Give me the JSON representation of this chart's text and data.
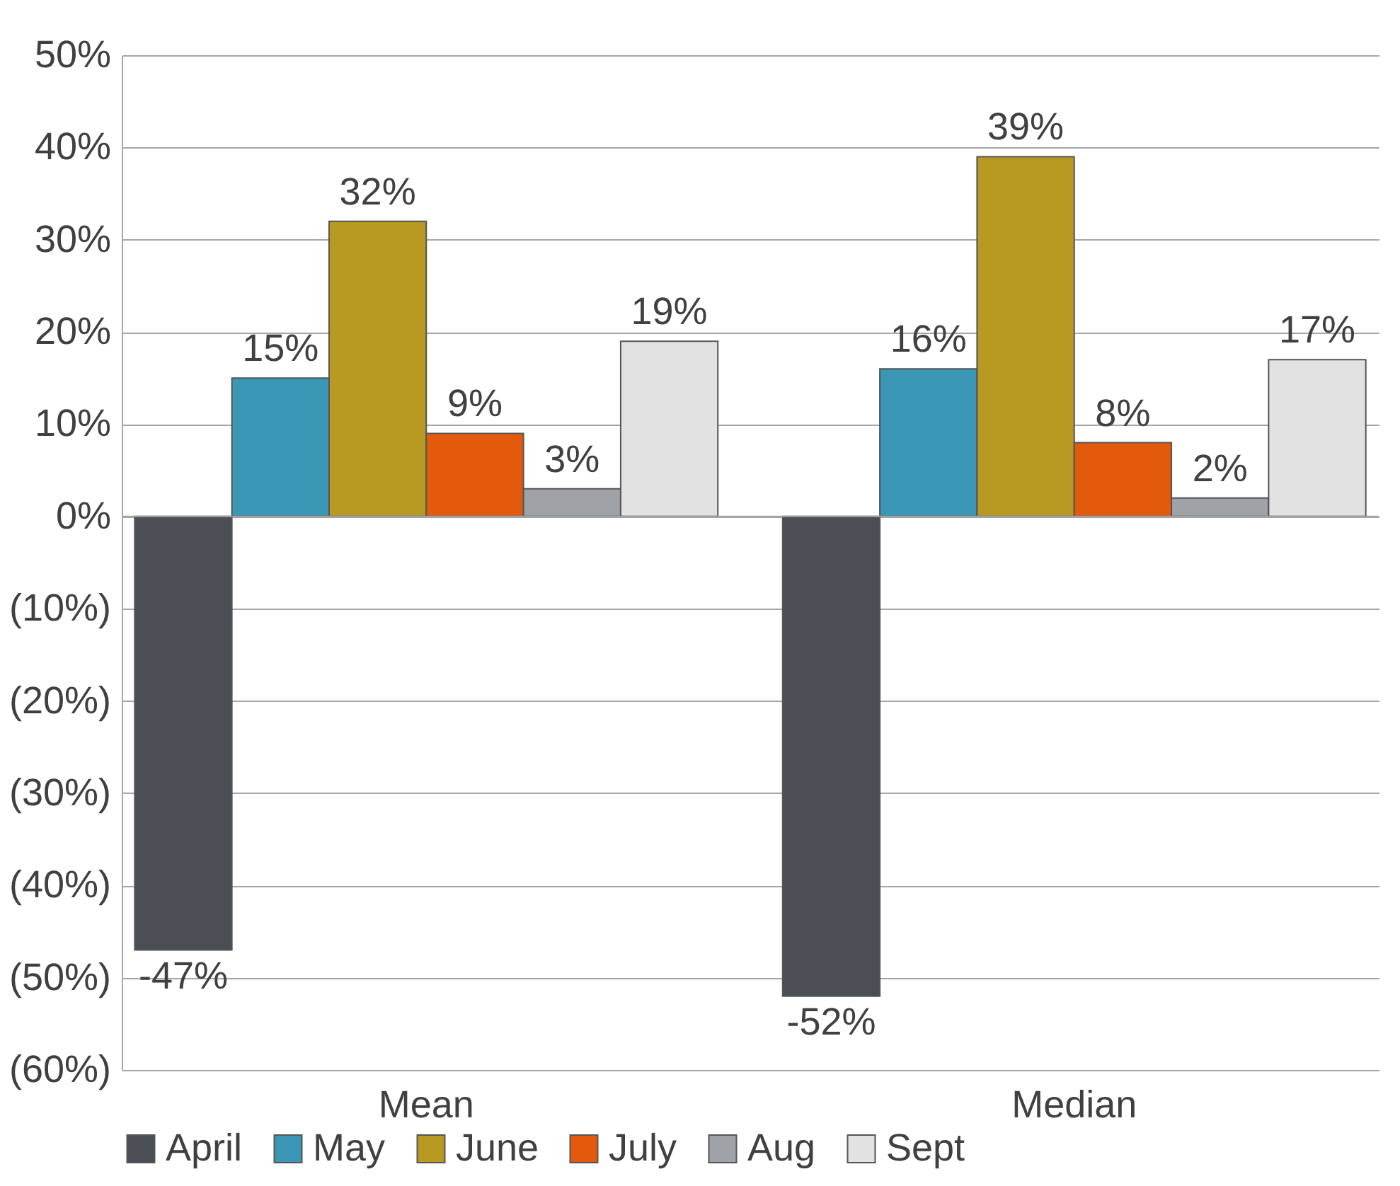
{
  "chart_data": {
    "type": "bar",
    "categories": [
      "Mean",
      "Median"
    ],
    "series": [
      {
        "name": "April",
        "color": "#4a4f55",
        "values": [
          -47,
          -52
        ],
        "value_labels": [
          "-47%",
          "-52%"
        ]
      },
      {
        "name": "May",
        "color": "#3a97b5",
        "values": [
          15,
          16
        ],
        "value_labels": [
          "15%",
          "16%"
        ]
      },
      {
        "name": "June",
        "color": "#b89a22",
        "values": [
          32,
          39
        ],
        "value_labels": [
          "32%",
          "39%"
        ]
      },
      {
        "name": "July",
        "color": "#e35a0d",
        "values": [
          9,
          8
        ],
        "value_labels": [
          "9%",
          "8%"
        ]
      },
      {
        "name": "Aug",
        "color": "#9fa2a6",
        "values": [
          3,
          2
        ],
        "value_labels": [
          "3%",
          "2%"
        ]
      },
      {
        "name": "Sept",
        "color": "#e2e2e2",
        "values": [
          19,
          17
        ],
        "value_labels": [
          "19%",
          "17%"
        ]
      }
    ],
    "ylim": [
      -60,
      50
    ],
    "yticks": [
      {
        "value": -60,
        "label": "(60%)"
      },
      {
        "value": -50,
        "label": "(50%)"
      },
      {
        "value": -40,
        "label": "(40%)"
      },
      {
        "value": -30,
        "label": "(30%)"
      },
      {
        "value": -20,
        "label": "(20%)"
      },
      {
        "value": -10,
        "label": "(10%)"
      },
      {
        "value": 0,
        "label": "0%"
      },
      {
        "value": 10,
        "label": "10%"
      },
      {
        "value": 20,
        "label": "20%"
      },
      {
        "value": 30,
        "label": "30%"
      },
      {
        "value": 40,
        "label": "40%"
      },
      {
        "value": 50,
        "label": "50%"
      }
    ],
    "grid": "y",
    "legend": "bottom"
  }
}
